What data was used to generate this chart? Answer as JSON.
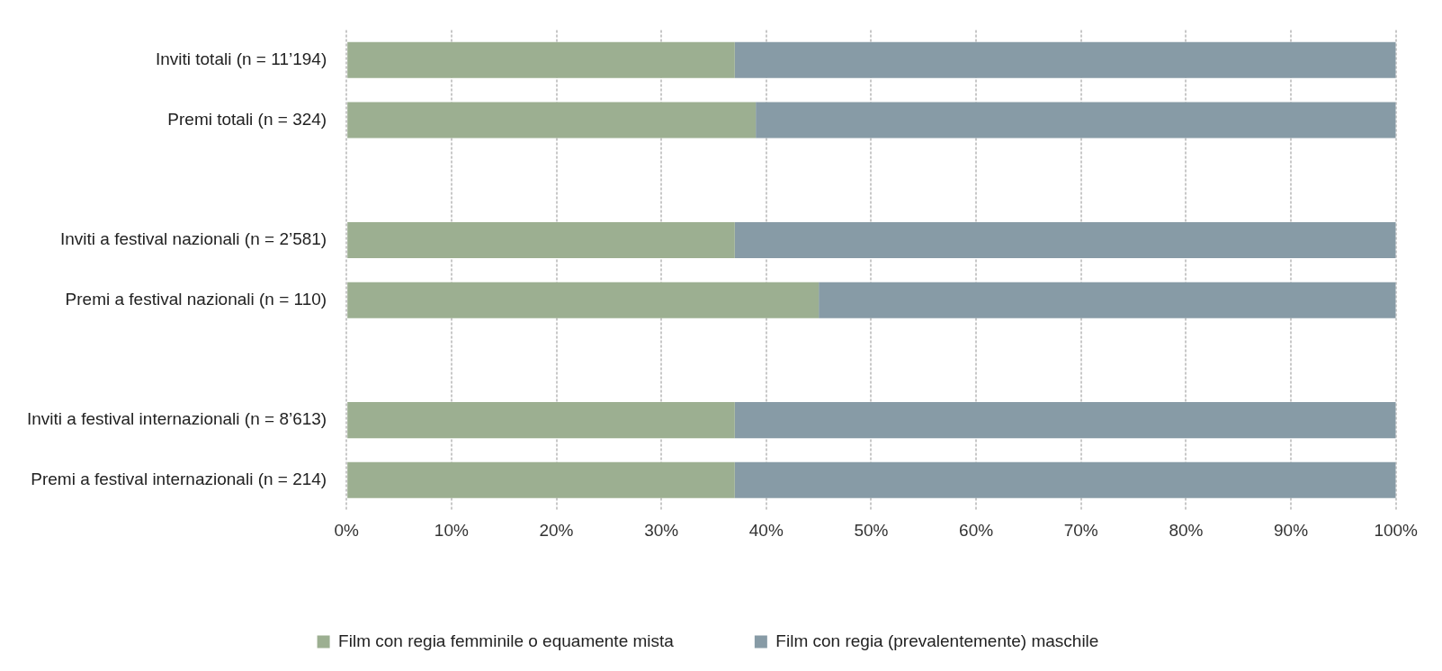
{
  "chart_data": {
    "type": "bar",
    "orientation": "horizontal",
    "stacked": true,
    "categories": [
      "Inviti totali (n = 11’194)",
      "Premi totali (n = 324)",
      null,
      "Inviti a festival nazionali (n = 2’581)",
      "Premi a festival nazionali (n = 110)",
      null,
      "Inviti a festival internazionali (n = 8’613)",
      "Premi a festival internazionali (n = 214)"
    ],
    "series": [
      {
        "name": "Film con regia femminile o equamente mista",
        "color": "#9caf91",
        "values": [
          37,
          39,
          null,
          37,
          45,
          null,
          37,
          37
        ]
      },
      {
        "name": "Film con regia (prevalentemente) maschile",
        "color": "#879ba6",
        "values": [
          63,
          61,
          null,
          63,
          55,
          null,
          63,
          63
        ]
      }
    ],
    "xlim": [
      0,
      100
    ],
    "xticks": [
      {
        "value": 0,
        "label": "0%"
      },
      {
        "value": 10,
        "label": "10%"
      },
      {
        "value": 20,
        "label": "20%"
      },
      {
        "value": 30,
        "label": "30%"
      },
      {
        "value": 40,
        "label": "40%"
      },
      {
        "value": 50,
        "label": "50%"
      },
      {
        "value": 60,
        "label": "60%"
      },
      {
        "value": 70,
        "label": "70%"
      },
      {
        "value": 80,
        "label": "80%"
      },
      {
        "value": 90,
        "label": "90%"
      },
      {
        "value": 100,
        "label": "100%"
      }
    ],
    "grid": "x",
    "legend": "bottom"
  }
}
